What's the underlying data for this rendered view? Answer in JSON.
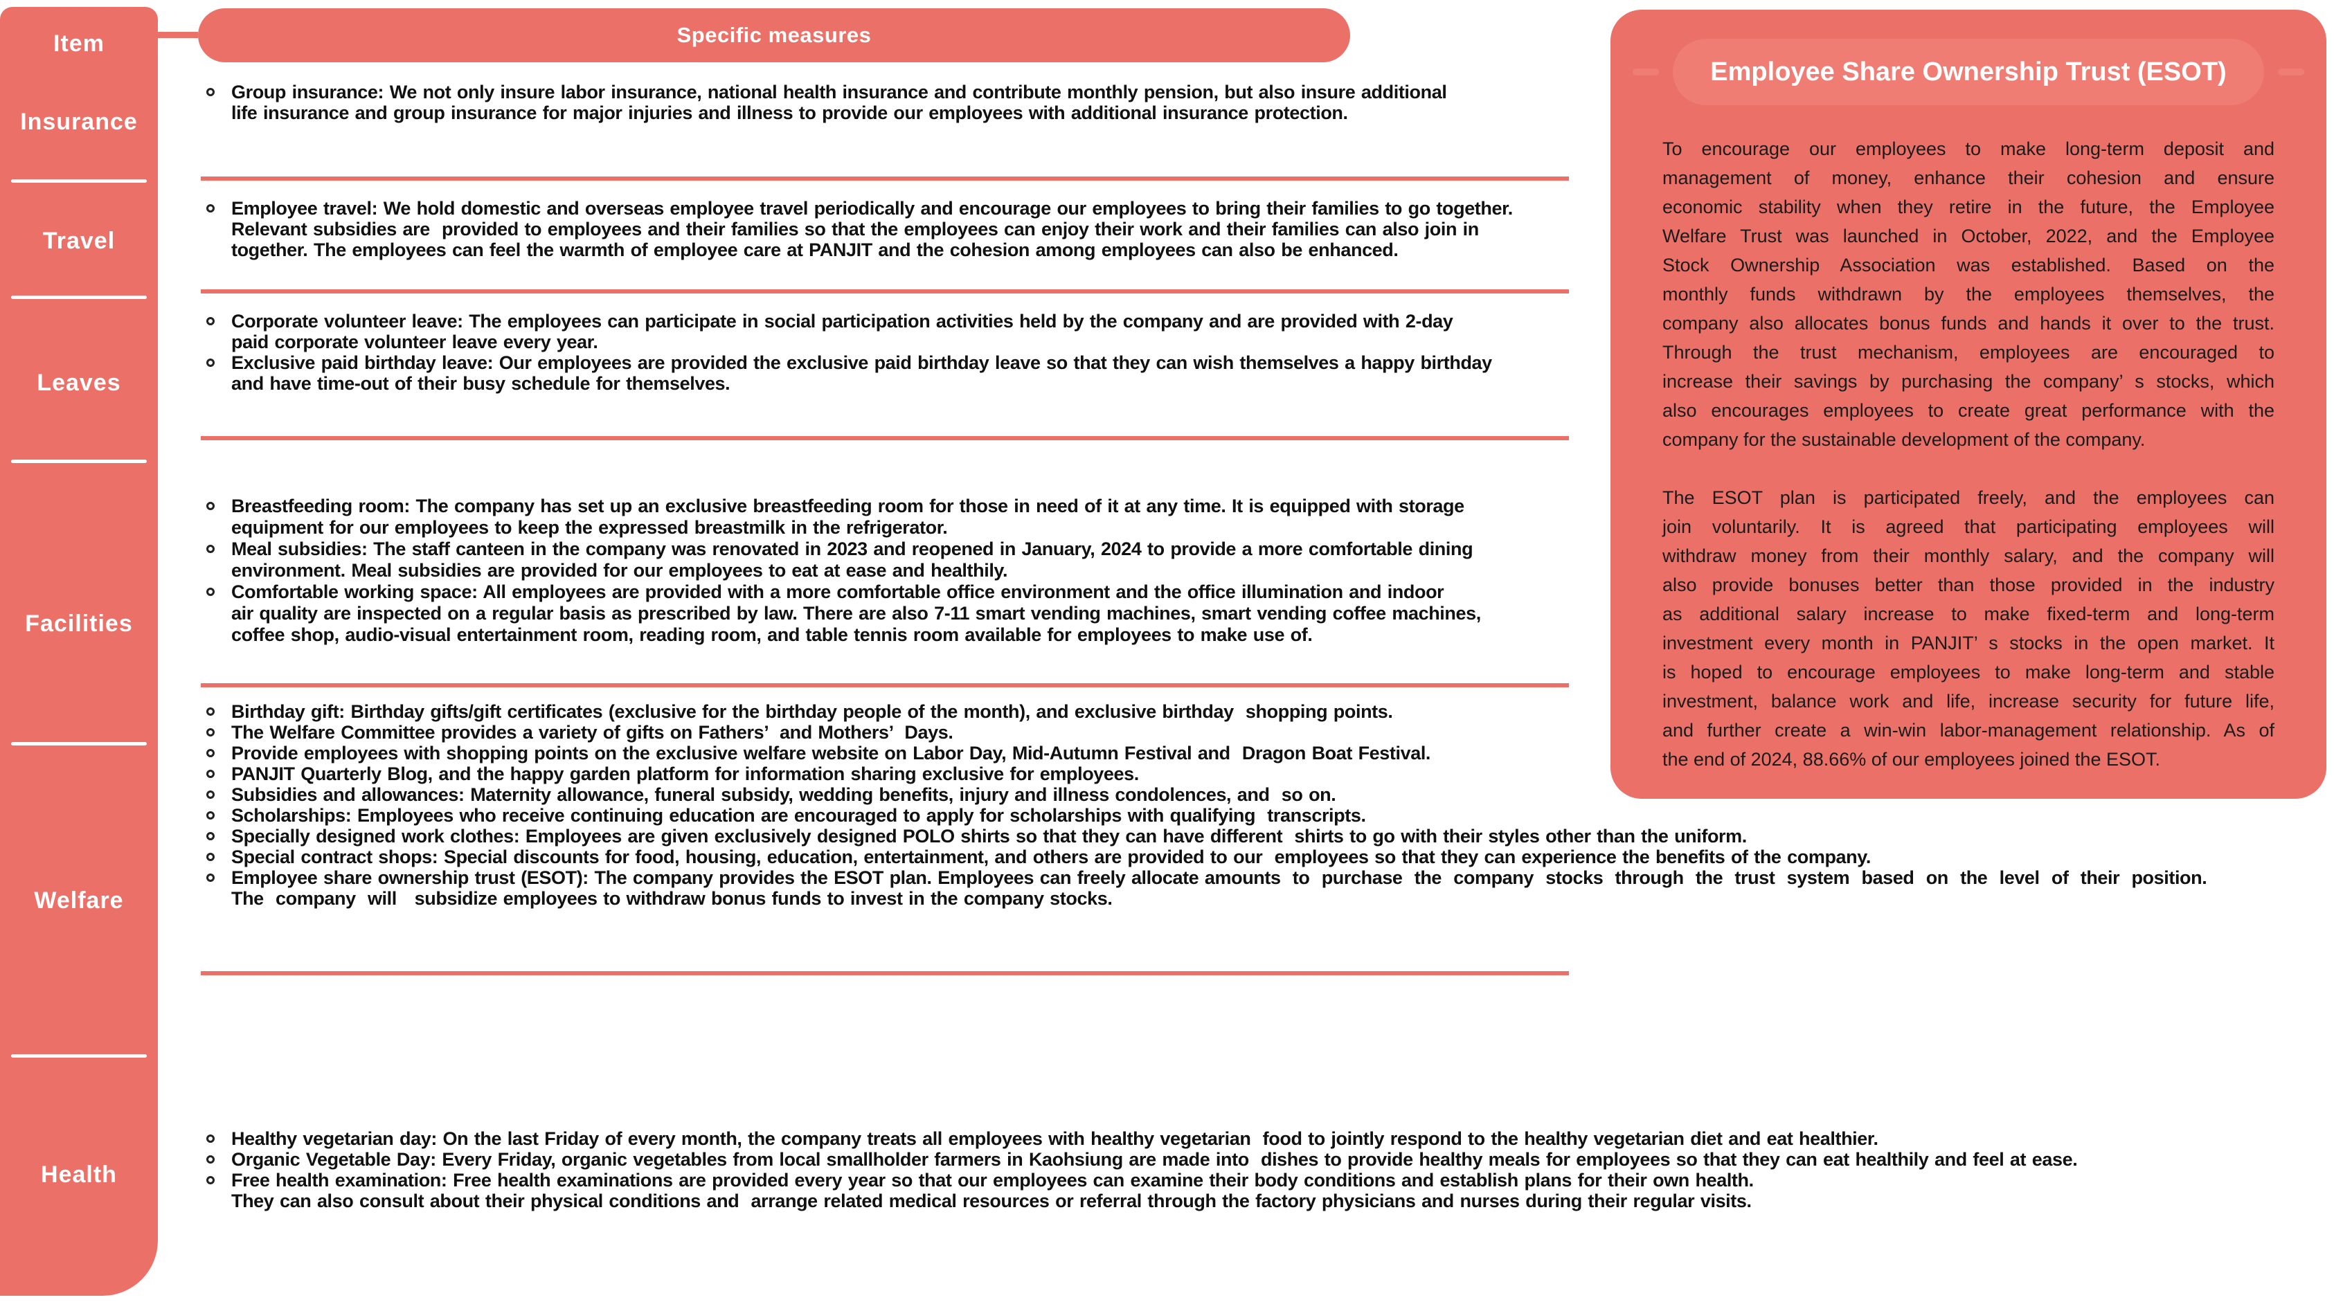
{
  "colors": {
    "coral": "#EB7067",
    "coral_light": "#EF7D74",
    "white": "#FFFFFF",
    "text_dark": "#1B1B1B"
  },
  "sidebar": {
    "header": "Item",
    "items": [
      "Insurance",
      "Travel",
      "Leaves",
      "Facilities",
      "Welfare",
      "Health"
    ]
  },
  "measures_header": "Specific measures",
  "sections": [
    {
      "id": "insurance",
      "lines": [
        {
          "t": "Group insurance: We not only insure labor insurance, national health insurance and contribute monthly pension, but also insure additional",
          "b": true
        },
        {
          "t": "life insurance and group insurance for major injuries and illness to provide our employees with additional insurance protection.",
          "b": false
        }
      ]
    },
    {
      "id": "travel",
      "lines": [
        {
          "t": "Employee travel: We hold domestic and overseas employee travel periodically and encourage our employees to bring their families to go together.",
          "b": true
        },
        {
          "t": "Relevant subsidies are  provided to employees and their families so that the employees can enjoy their work and their families can also join in",
          "b": false
        },
        {
          "t": "together. The employees can feel the warmth of employee care at PANJIT and the cohesion among employees can also be enhanced.",
          "b": false
        }
      ]
    },
    {
      "id": "leaves",
      "lines": [
        {
          "t": "Corporate volunteer leave: The employees can participate in social participation activities held by the company and are provided with 2-day",
          "b": true
        },
        {
          "t": "paid corporate volunteer leave every year.",
          "b": false
        },
        {
          "t": "Exclusive paid birthday leave: Our employees are provided the exclusive paid birthday leave so that they can wish themselves a happy birthday",
          "b": true
        },
        {
          "t": "and have time-out of their busy schedule for themselves.",
          "b": false
        }
      ]
    },
    {
      "id": "facilities",
      "lines": [
        {
          "t": "Breastfeeding room: The company has set up an exclusive breastfeeding room for those in need of it at any time. It is equipped with storage",
          "b": true
        },
        {
          "t": "equipment for our employees to keep the expressed breastmilk in the refrigerator.",
          "b": false
        },
        {
          "t": "Meal subsidies: The staff canteen in the company was renovated in 2023 and reopened in January, 2024 to provide a more comfortable dining",
          "b": true
        },
        {
          "t": "environment. Meal subsidies are provided for our employees to eat at ease and healthily.",
          "b": false
        },
        {
          "t": "Comfortable working space: All employees are provided with a more comfortable office environment and the office illumination and indoor",
          "b": true
        },
        {
          "t": "air quality are inspected on a regular basis as prescribed by law. There are also 7-11 smart vending machines, smart vending coffee machines,",
          "b": false
        },
        {
          "t": "coffee shop, audio-visual entertainment room, reading room, and table tennis room available for employees to make use of.",
          "b": false
        }
      ]
    },
    {
      "id": "welfare",
      "lines": [
        {
          "t": "Birthday gift: Birthday gifts/gift certificates (exclusive for the birthday people of the month), and exclusive birthday  shopping points.",
          "b": true
        },
        {
          "t": "The Welfare Committee provides a variety of gifts on Fathers’  and Mothers’  Days.",
          "b": true
        },
        {
          "t": "Provide employees with shopping points on the exclusive welfare website on Labor Day, Mid-Autumn Festival and  Dragon Boat Festival.",
          "b": true
        },
        {
          "t": "PANJIT Quarterly Blog, and the happy garden platform for information sharing exclusive for employees.",
          "b": true
        },
        {
          "t": "Subsidies and allowances: Maternity allowance, funeral subsidy, wedding benefits, injury and illness condolences, and  so on.",
          "b": true
        },
        {
          "t": "Scholarships: Employees who receive continuing education are encouraged to apply for scholarships with qualifying  transcripts.",
          "b": true
        },
        {
          "t": "Specially designed work clothes: Employees are given exclusively designed POLO shirts so that they can have different  shirts to go with their styles other than the uniform.",
          "b": true
        },
        {
          "t": "Special contract shops: Special discounts for food, housing, education, entertainment, and others are provided to our  employees so that they can experience the benefits of the company.",
          "b": true
        },
        {
          "t": "Employee share ownership trust (ESOT): The company provides the ESOT plan. Employees can freely allocate amounts  to  purchase  the  company  stocks  through  the  trust  system  based  on  the  level  of  their  position.",
          "b": true
        },
        {
          "t": "The  company  will   subsidize employees to withdraw bonus funds to invest in the company stocks.",
          "b": false
        }
      ]
    },
    {
      "id": "health",
      "lines": [
        {
          "t": "Healthy vegetarian day: On the last Friday of every month, the company treats all employees with healthy vegetarian  food to jointly respond to the healthy vegetarian diet and eat healthier.",
          "b": true
        },
        {
          "t": "Organic Vegetable Day: Every Friday, organic vegetables from local smallholder farmers in Kaohsiung are made into  dishes to provide healthy meals for employees so that they can eat healthily and feel at ease.",
          "b": true
        },
        {
          "t": "Free health examination: Free health examinations are provided every year so that our employees can examine their body conditions and establish plans for their own health.",
          "b": true
        },
        {
          "t": "They can also consult about their physical conditions and  arrange related medical resources or referral through the factory physicians and nurses during their regular visits.",
          "b": false
        }
      ]
    }
  ],
  "esot": {
    "title": "Employee Share Ownership Trust (ESOT)",
    "paragraphs": [
      [
        "To encourage our employees to make long-term deposit and",
        "management of money, enhance their cohesion and ensure",
        "economic stability when they retire in the future, the Employee",
        "Welfare Trust was launched in October, 2022, and the Employee",
        "Stock Ownership Association was established. Based on the",
        "monthly funds withdrawn by the employees themselves, the",
        "company also allocates bonus funds and hands it over to the trust.",
        "Through the trust mechanism, employees are encouraged to",
        "increase their savings by purchasing the company’ s stocks, which",
        "also encourages employees to create great performance with the",
        "company for the sustainable development of the company."
      ],
      [
        "The ESOT plan is participated freely, and the employees can",
        "join voluntarily. It is agreed that participating employees will",
        "withdraw money from their monthly salary, and the company will",
        "also provide bonuses better than those provided in the industry",
        "as additional salary increase to make fixed-term and long-term",
        "investment every month in PANJIT’ s stocks in the open market. It",
        "is hoped to encourage employees to make long-term and stable",
        "investment, balance work and life, increase security for future life,",
        "and further create a win-win labor-management relationship. As of",
        "the end of 2024, 88.66% of our employees joined the ESOT."
      ]
    ]
  }
}
